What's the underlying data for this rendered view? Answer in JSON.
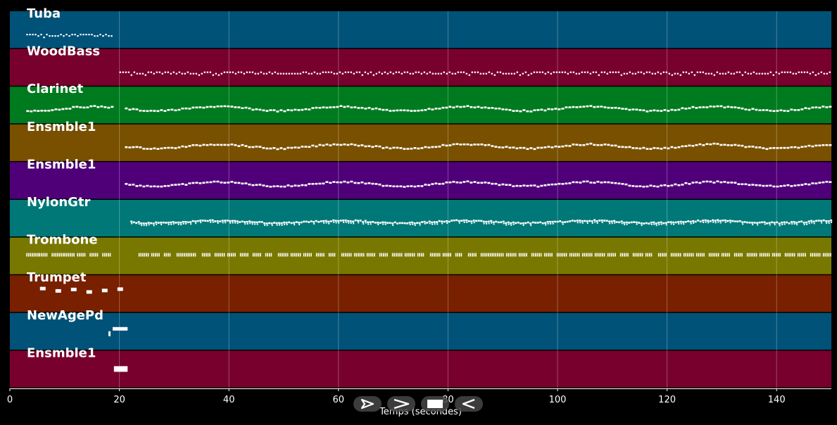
{
  "chart_data": {
    "type": "piano-roll",
    "xlabel": "Temps (secondes)",
    "xlim": [
      0,
      150
    ],
    "xticks": [
      0,
      20,
      40,
      60,
      80,
      100,
      120,
      140
    ],
    "grid": true,
    "tracks": [
      {
        "name": "Tuba",
        "color": "#005278",
        "segments": [
          [
            3,
            18.5
          ]
        ],
        "style": "dotted"
      },
      {
        "name": "WoodBass",
        "color": "#78002d",
        "segments": [
          [
            20,
            150
          ]
        ],
        "style": "dotted"
      },
      {
        "name": "Clarinet",
        "color": "#007a1e",
        "segments": [
          [
            3,
            18.5
          ],
          [
            21,
            150
          ]
        ],
        "style": "wave"
      },
      {
        "name": "Ensmble1",
        "color": "#785000",
        "segments": [
          [
            21,
            150
          ]
        ],
        "style": "wave"
      },
      {
        "name": "Ensmble1",
        "color": "#4f0078",
        "segments": [
          [
            21,
            150
          ]
        ],
        "style": "wave"
      },
      {
        "name": "NylonGtr",
        "color": "#007878",
        "segments": [
          [
            22,
            150
          ]
        ],
        "style": "dense"
      },
      {
        "name": "Trombone",
        "color": "#787800",
        "segments": [
          [
            3,
            19
          ],
          [
            23.5,
            150
          ]
        ],
        "style": "blocks"
      },
      {
        "name": "Trumpet",
        "color": "#782000",
        "segments": [
          [
            5.5,
            21
          ]
        ],
        "style": "sparse"
      },
      {
        "name": "NewAgePd",
        "color": "#005278",
        "segments": [
          [
            18,
            21.5
          ]
        ],
        "style": "pad"
      },
      {
        "name": "Ensmble1",
        "color": "#78002d",
        "segments": [
          [
            19,
            21.5
          ]
        ],
        "style": "chord"
      }
    ]
  },
  "controls": [
    {
      "name": "play-button",
      "icon": "play-icon"
    },
    {
      "name": "forward-button",
      "icon": "chevron-right-icon"
    },
    {
      "name": "stop-button",
      "icon": "stop-icon"
    },
    {
      "name": "back-button",
      "icon": "chevron-left-icon"
    }
  ]
}
